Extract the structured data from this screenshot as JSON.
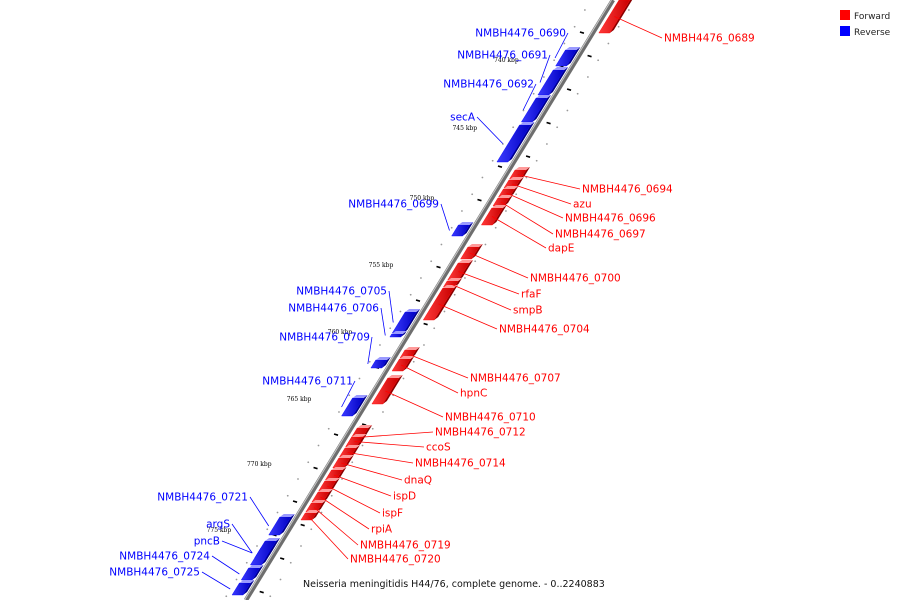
{
  "legend": {
    "forward": {
      "label": "Forward",
      "color": "#ff0000"
    },
    "reverse": {
      "label": "Reverse",
      "color": "#0000ff"
    }
  },
  "caption": "Neisseria meningitidis H44/76, complete genome. - 0..2240883",
  "scale_marks": [
    "740 kbp",
    "745 kbp",
    "750 kbp",
    "755 kbp",
    "760 kbp",
    "765 kbp",
    "770 kbp",
    "775 kbp"
  ],
  "forward_genes": [
    "NMBH4476_0689",
    "NMBH4476_0694",
    "azu",
    "NMBH4476_0696",
    "NMBH4476_0697",
    "dapE",
    "NMBH4476_0700",
    "rfaF",
    "smpB",
    "NMBH4476_0704",
    "NMBH4476_0707",
    "hpnC",
    "NMBH4476_0710",
    "NMBH4476_0712",
    "ccoS",
    "NMBH4476_0714",
    "dnaQ",
    "ispD",
    "ispF",
    "rpiA",
    "NMBH4476_0719",
    "NMBH4476_0720"
  ],
  "reverse_genes": [
    "NMBH4476_0690",
    "NMBH4476_0691",
    "NMBH4476_0692",
    "secA",
    "NMBH4476_0699",
    "NMBH4476_0705",
    "NMBH4476_0706",
    "NMBH4476_0709",
    "NMBH4476_0711",
    "NMBH4476_0721",
    "argS",
    "pncB",
    "NMBH4476_0724",
    "NMBH4476_0725"
  ]
}
